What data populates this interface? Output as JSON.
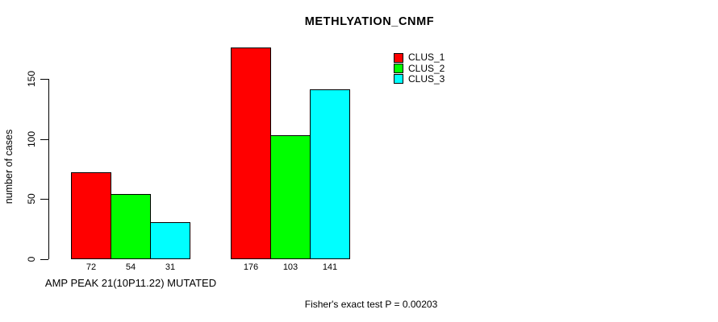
{
  "chart_data": {
    "type": "bar",
    "title": "METHLYATION_CNMF",
    "ylabel": "number of cases",
    "xlabel": "AMP PEAK 21(10P11.22) MUTATED",
    "annotation": "Fisher's exact test P = 0.00203",
    "yticks": [
      0,
      50,
      100,
      150
    ],
    "ylim": [
      0,
      150
    ],
    "grid": false,
    "legend_position": "top-right",
    "group_labels": [
      "",
      ""
    ],
    "series": [
      {
        "name": "CLUS_1",
        "color": "#FF0000",
        "values": [
          72,
          176
        ]
      },
      {
        "name": "CLUS_2",
        "color": "#00FF00",
        "values": [
          54,
          103
        ]
      },
      {
        "name": "CLUS_3",
        "color": "#00FFFF",
        "values": [
          31,
          141
        ]
      }
    ],
    "bar_value_labels": [
      72,
      54,
      31,
      176,
      103,
      141
    ]
  },
  "colors": {
    "axis": "#000000",
    "background": "#FFFFFF"
  }
}
